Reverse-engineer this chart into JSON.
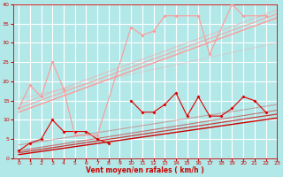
{
  "background_color": "#b3e8e8",
  "grid_color": "#ffffff",
  "xlabel": "Vent moyen/en rafales ( km/h )",
  "xlabel_color": "#cc0000",
  "tick_color": "#cc0000",
  "xlim": [
    -0.5,
    23
  ],
  "ylim": [
    0,
    40
  ],
  "yticks": [
    0,
    5,
    10,
    15,
    20,
    25,
    30,
    35,
    40
  ],
  "xticks": [
    0,
    1,
    2,
    3,
    4,
    5,
    6,
    7,
    8,
    9,
    10,
    11,
    12,
    13,
    14,
    15,
    16,
    17,
    18,
    19,
    20,
    21,
    22,
    23
  ],
  "scatter_lines": [
    {
      "x": [
        0,
        1,
        2,
        3,
        4,
        5,
        6,
        7,
        8,
        9,
        10,
        11,
        12,
        13,
        14,
        15,
        16,
        17,
        18,
        19,
        20,
        21,
        22
      ],
      "y": [
        2,
        4,
        5,
        10,
        7,
        7,
        7,
        5,
        4,
        null,
        15,
        12,
        12,
        14,
        17,
        11,
        16,
        11,
        11,
        13,
        16,
        15,
        12
      ],
      "color": "#dd0000",
      "alpha": 1.0,
      "lw": 0.8,
      "marker": "D",
      "ms": 2.0
    },
    {
      "x": [
        0,
        1,
        2,
        3,
        4,
        5,
        7,
        10,
        11,
        12,
        13,
        14,
        16,
        17,
        19,
        20,
        22
      ],
      "y": [
        13,
        19,
        16,
        25,
        18,
        6,
        6,
        34,
        32,
        33,
        37,
        37,
        37,
        27,
        40,
        37,
        37
      ],
      "color": "#ff9999",
      "alpha": 1.0,
      "lw": 0.8,
      "marker": "D",
      "ms": 2.0
    }
  ],
  "smooth_lines": [
    {
      "x": [
        0,
        23
      ],
      "y": [
        1.0,
        10.5
      ],
      "color": "#cc0000",
      "alpha": 1.0,
      "lw": 1.0
    },
    {
      "x": [
        0,
        23
      ],
      "y": [
        1.5,
        11.5
      ],
      "color": "#cc0000",
      "alpha": 0.75,
      "lw": 0.9
    },
    {
      "x": [
        0,
        23
      ],
      "y": [
        2.0,
        12.5
      ],
      "color": "#cc0000",
      "alpha": 0.5,
      "lw": 0.8
    },
    {
      "x": [
        0,
        23
      ],
      "y": [
        3.5,
        14.0
      ],
      "color": "#cc0000",
      "alpha": 0.3,
      "lw": 0.8
    },
    {
      "x": [
        0,
        23
      ],
      "y": [
        12.0,
        36.5
      ],
      "color": "#ff9999",
      "alpha": 1.0,
      "lw": 1.0
    },
    {
      "x": [
        0,
        23
      ],
      "y": [
        13.0,
        37.5
      ],
      "color": "#ff9999",
      "alpha": 0.75,
      "lw": 0.9
    },
    {
      "x": [
        0,
        23
      ],
      "y": [
        14.0,
        38.5
      ],
      "color": "#ff9999",
      "alpha": 0.5,
      "lw": 0.8
    },
    {
      "x": [
        0,
        23
      ],
      "y": [
        15.5,
        30.0
      ],
      "color": "#ff9999",
      "alpha": 0.3,
      "lw": 0.8
    }
  ]
}
